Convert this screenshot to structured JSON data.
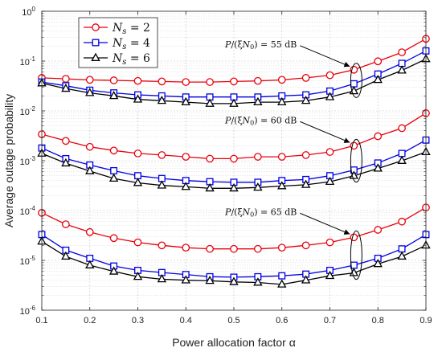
{
  "chart_data": {
    "type": "line",
    "xlabel": "Power allocation factor α",
    "ylabel": "Average outage probability",
    "xlim": [
      0.1,
      0.9
    ],
    "ylim": [
      1e-06,
      1
    ],
    "yscale": "log",
    "grid": true,
    "legend_position": "top-left",
    "x_ticks": [
      "0.1",
      "0.2",
      "0.3",
      "0.4",
      "0.5",
      "0.6",
      "0.7",
      "0.8",
      "0.9"
    ],
    "y_ticks": [
      {
        "exp": -6,
        "label": "10",
        "sup": "-6"
      },
      {
        "exp": -5,
        "label": "10",
        "sup": "-5"
      },
      {
        "exp": -4,
        "label": "10",
        "sup": "-4"
      },
      {
        "exp": -3,
        "label": "10",
        "sup": "-3"
      },
      {
        "exp": -2,
        "label": "10",
        "sup": "-2"
      },
      {
        "exp": -1,
        "label": "10",
        "sup": "-1"
      },
      {
        "exp": 0,
        "label": "10",
        "sup": "0"
      }
    ],
    "x": [
      0.1,
      0.15,
      0.2,
      0.25,
      0.3,
      0.35,
      0.4,
      0.45,
      0.5,
      0.55,
      0.6,
      0.65,
      0.7,
      0.75,
      0.8,
      0.85,
      0.9
    ],
    "groups": [
      {
        "annotation": "P/(ξN0) = 55 dB",
        "series": [
          {
            "name": "Ns = 2",
            "values": [
              0.046,
              0.044,
              0.042,
              0.041,
              0.04,
              0.039,
              0.038,
              0.038,
              0.039,
              0.04,
              0.042,
              0.046,
              0.052,
              0.067,
              0.099,
              0.15,
              0.28
            ]
          },
          {
            "name": "Ns = 4",
            "values": [
              0.038,
              0.032,
              0.026,
              0.023,
              0.021,
              0.02,
              0.019,
              0.019,
              0.019,
              0.019,
              0.02,
              0.021,
              0.025,
              0.035,
              0.055,
              0.09,
              0.16
            ]
          },
          {
            "name": "Ns = 6",
            "values": [
              0.036,
              0.028,
              0.023,
              0.02,
              0.017,
              0.016,
              0.015,
              0.014,
              0.014,
              0.015,
              0.015,
              0.016,
              0.019,
              0.025,
              0.042,
              0.065,
              0.11
            ]
          }
        ]
      },
      {
        "annotation": "P/(ξN0) = 60 dB",
        "series": [
          {
            "name": "Ns = 2",
            "values": [
              0.0034,
              0.0025,
              0.0019,
              0.0016,
              0.0014,
              0.0013,
              0.0012,
              0.0011,
              0.0011,
              0.0012,
              0.0012,
              0.0013,
              0.0015,
              0.002,
              0.0031,
              0.0045,
              0.009
            ]
          },
          {
            "name": "Ns = 4",
            "values": [
              0.0018,
              0.0011,
              0.00082,
              0.00063,
              0.0005,
              0.00044,
              0.0004,
              0.00038,
              0.00037,
              0.00037,
              0.0004,
              0.00042,
              0.0005,
              0.00065,
              0.0009,
              0.0014,
              0.0026
            ]
          },
          {
            "name": "Ns = 6",
            "values": [
              0.0014,
              0.00089,
              0.00062,
              0.00044,
              0.00036,
              0.00032,
              0.0003,
              0.00028,
              0.00028,
              0.00029,
              0.00031,
              0.00033,
              0.00038,
              0.0005,
              0.0007,
              0.001,
              0.0015
            ]
          }
        ]
      },
      {
        "annotation": "P/(ξN0) = 65 dB",
        "series": [
          {
            "name": "Ns = 2",
            "values": [
              9e-05,
              5.3e-05,
              3.7e-05,
              2.8e-05,
              2.3e-05,
              2e-05,
              1.8e-05,
              1.7e-05,
              1.7e-05,
              1.7e-05,
              1.8e-05,
              2e-05,
              2.3e-05,
              2.9e-05,
              4.1e-05,
              6e-05,
              0.000115
            ]
          },
          {
            "name": "Ns = 4",
            "values": [
              3.3e-05,
              1.6e-05,
              1.1e-05,
              7.7e-06,
              6.3e-06,
              5.7e-06,
              5.2e-06,
              4.7e-06,
              4.6e-06,
              4.7e-06,
              4.9e-06,
              5.3e-06,
              6.3e-06,
              8e-06,
              1.1e-05,
              1.7e-05,
              3.3e-05
            ]
          },
          {
            "name": "Ns = 6",
            "values": [
              2.4e-05,
              1.2e-05,
              8e-06,
              6e-06,
              4.7e-06,
              4.2e-06,
              4e-06,
              3.9e-06,
              3.7e-06,
              3.6e-06,
              3.3e-06,
              4e-06,
              4.9e-06,
              5.6e-06,
              8.5e-06,
              1.2e-05,
              2e-05
            ]
          }
        ]
      }
    ],
    "legend": [
      {
        "label": "N",
        "sub": "s",
        "eq": " = 2",
        "color": "#e8000b",
        "marker": "circle"
      },
      {
        "label": "N",
        "sub": "s",
        "eq": " = 4",
        "color": "#0000e0",
        "marker": "square"
      },
      {
        "label": "N",
        "sub": "s",
        "eq": " = 6",
        "color": "#000000",
        "marker": "triangle"
      }
    ],
    "colors": [
      "#e8000b",
      "#0000e0",
      "#000000"
    ],
    "markers": [
      "circle",
      "square",
      "triangle"
    ]
  }
}
